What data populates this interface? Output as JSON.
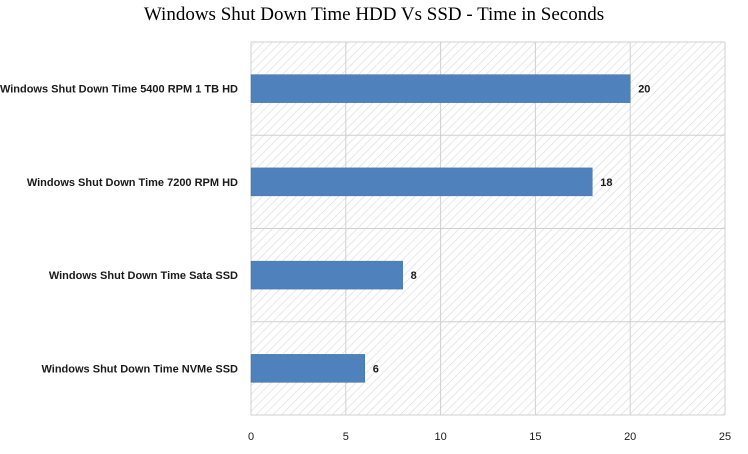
{
  "chart_data": {
    "type": "bar",
    "orientation": "horizontal",
    "title": "Windows Shut Down Time HDD Vs SSD -  Time in Seconds",
    "categories": [
      "Windows Shut Down Time  5400 RPM 1 TB HD",
      "Windows Shut Down Time  7200 RPM HD",
      "Windows Shut Down Time  Sata SSD",
      "Windows Shut Down Time NVMe SSD"
    ],
    "values": [
      20,
      18,
      8,
      6
    ],
    "xlim": [
      0,
      25
    ],
    "xticks": [
      0,
      5,
      10,
      15,
      20,
      25
    ],
    "xlabel": "",
    "ylabel": "",
    "grid": true,
    "legend": "none",
    "bar_color": "#4f81bd",
    "plot_background": "hatched light gray"
  }
}
